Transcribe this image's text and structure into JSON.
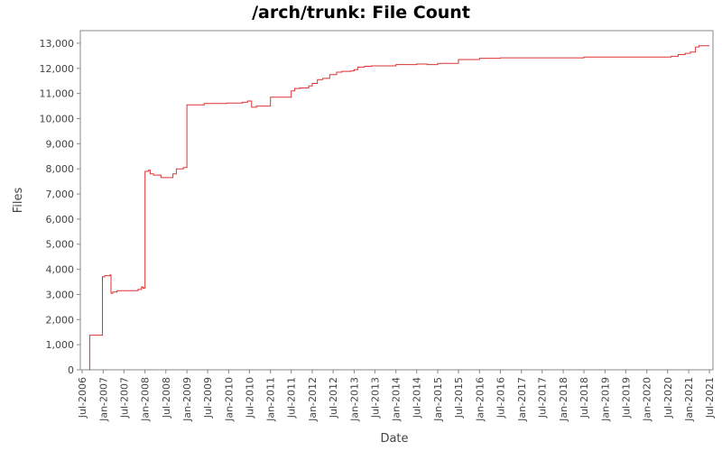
{
  "chart_data": {
    "type": "line",
    "title": "/arch/trunk: File Count",
    "xlabel": "Date",
    "ylabel": "Files",
    "x_axis": "date",
    "xlim": [
      "2006-06-15",
      "2021-08-01"
    ],
    "ylim": [
      0,
      13500
    ],
    "y_ticks": [
      0,
      1000,
      2000,
      3000,
      4000,
      5000,
      6000,
      7000,
      8000,
      9000,
      10000,
      11000,
      12000,
      13000
    ],
    "y_tick_labels": [
      "0",
      "1,000",
      "2,000",
      "3,000",
      "4,000",
      "5,000",
      "6,000",
      "7,000",
      "8,000",
      "9,000",
      "10,000",
      "11,000",
      "12,000",
      "13,000"
    ],
    "x_ticks": [
      "2006-07-01",
      "2007-01-01",
      "2007-07-01",
      "2008-01-01",
      "2008-07-01",
      "2009-01-01",
      "2009-07-01",
      "2010-01-01",
      "2010-07-01",
      "2011-01-01",
      "2011-07-01",
      "2012-01-01",
      "2012-07-01",
      "2013-01-01",
      "2013-07-01",
      "2014-01-01",
      "2014-07-01",
      "2015-01-01",
      "2015-07-01",
      "2016-01-01",
      "2016-07-01",
      "2017-01-01",
      "2017-07-01",
      "2018-01-01",
      "2018-07-01",
      "2019-01-01",
      "2019-07-01",
      "2020-01-01",
      "2020-07-01",
      "2021-01-01",
      "2021-07-01"
    ],
    "x_tick_labels": [
      "Jul-2006",
      "Jan-2007",
      "Jul-2007",
      "Jan-2008",
      "Jul-2008",
      "Jan-2009",
      "Jul-2009",
      "Jan-2010",
      "Jul-2010",
      "Jan-2011",
      "Jul-2011",
      "Jan-2012",
      "Jul-2012",
      "Jan-2013",
      "Jul-2013",
      "Jan-2014",
      "Jul-2014",
      "Jan-2015",
      "Jul-2015",
      "Jan-2016",
      "Jul-2016",
      "Jan-2017",
      "Jul-2017",
      "Jan-2018",
      "Jul-2018",
      "Jan-2019",
      "Jul-2019",
      "Jan-2020",
      "Jul-2020",
      "Jan-2021",
      "Jul-2021"
    ],
    "grid": false,
    "line_color": "#dd3333",
    "series": [
      {
        "step": true,
        "points": [
          [
            "2006-09-01",
            0
          ],
          [
            "2006-09-05",
            1380
          ],
          [
            "2006-12-20",
            1380
          ],
          [
            "2006-12-25",
            3700
          ],
          [
            "2007-01-15",
            3750
          ],
          [
            "2007-03-01",
            3780
          ],
          [
            "2007-03-10",
            3050
          ],
          [
            "2007-03-25",
            3100
          ],
          [
            "2007-05-01",
            3150
          ],
          [
            "2007-10-01",
            3150
          ],
          [
            "2007-11-01",
            3200
          ],
          [
            "2007-12-01",
            3300
          ],
          [
            "2007-12-15",
            3250
          ],
          [
            "2008-01-01",
            7900
          ],
          [
            "2008-02-01",
            7950
          ],
          [
            "2008-02-15",
            7800
          ],
          [
            "2008-03-15",
            7750
          ],
          [
            "2008-05-20",
            7650
          ],
          [
            "2008-09-01",
            7800
          ],
          [
            "2008-10-01",
            8000
          ],
          [
            "2008-12-01",
            8050
          ],
          [
            "2009-01-01",
            10550
          ],
          [
            "2009-06-01",
            10600
          ],
          [
            "2009-12-15",
            10620
          ],
          [
            "2010-05-01",
            10650
          ],
          [
            "2010-06-15",
            10700
          ],
          [
            "2010-07-20",
            10450
          ],
          [
            "2010-09-01",
            10500
          ],
          [
            "2011-01-01",
            10850
          ],
          [
            "2011-07-01",
            11100
          ],
          [
            "2011-08-01",
            11200
          ],
          [
            "2011-09-15",
            11220
          ],
          [
            "2011-12-01",
            11300
          ],
          [
            "2012-01-01",
            11400
          ],
          [
            "2012-02-15",
            11550
          ],
          [
            "2012-04-01",
            11600
          ],
          [
            "2012-06-01",
            11750
          ],
          [
            "2012-08-01",
            11850
          ],
          [
            "2012-09-15",
            11880
          ],
          [
            "2012-12-01",
            11900
          ],
          [
            "2013-01-01",
            11950
          ],
          [
            "2013-02-01",
            12050
          ],
          [
            "2013-04-01",
            12080
          ],
          [
            "2013-06-01",
            12100
          ],
          [
            "2014-01-01",
            12150
          ],
          [
            "2014-07-01",
            12170
          ],
          [
            "2014-10-01",
            12150
          ],
          [
            "2015-01-01",
            12200
          ],
          [
            "2015-07-01",
            12350
          ],
          [
            "2016-01-01",
            12400
          ],
          [
            "2016-07-01",
            12420
          ],
          [
            "2018-07-01",
            12450
          ],
          [
            "2020-08-01",
            12480
          ],
          [
            "2020-10-01",
            12550
          ],
          [
            "2020-12-01",
            12600
          ],
          [
            "2021-01-15",
            12650
          ],
          [
            "2021-03-01",
            12850
          ],
          [
            "2021-04-01",
            12900
          ],
          [
            "2021-07-01",
            12900
          ]
        ]
      }
    ]
  }
}
